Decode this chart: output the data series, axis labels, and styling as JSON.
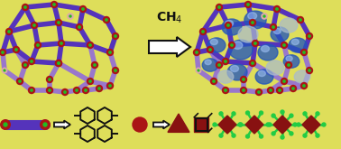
{
  "background_color": "#dede5a",
  "arrow_color": "#111111",
  "node_color": "#aa1515",
  "linker_color": "#5533bb",
  "linker_color2": "#9977cc",
  "node_connector_color": "#22bb22",
  "blue_sphere_color": "#2255bb",
  "gray_sphere_color": "#aabbcc",
  "pink_node_color": "#ddaaaa",
  "ch4_text": "CH$_4$",
  "fig_width": 3.78,
  "fig_height": 1.65,
  "dpi": 100,
  "bottom_green": "#22cc44",
  "shape_dark": "#881111",
  "shape_black": "#222222"
}
